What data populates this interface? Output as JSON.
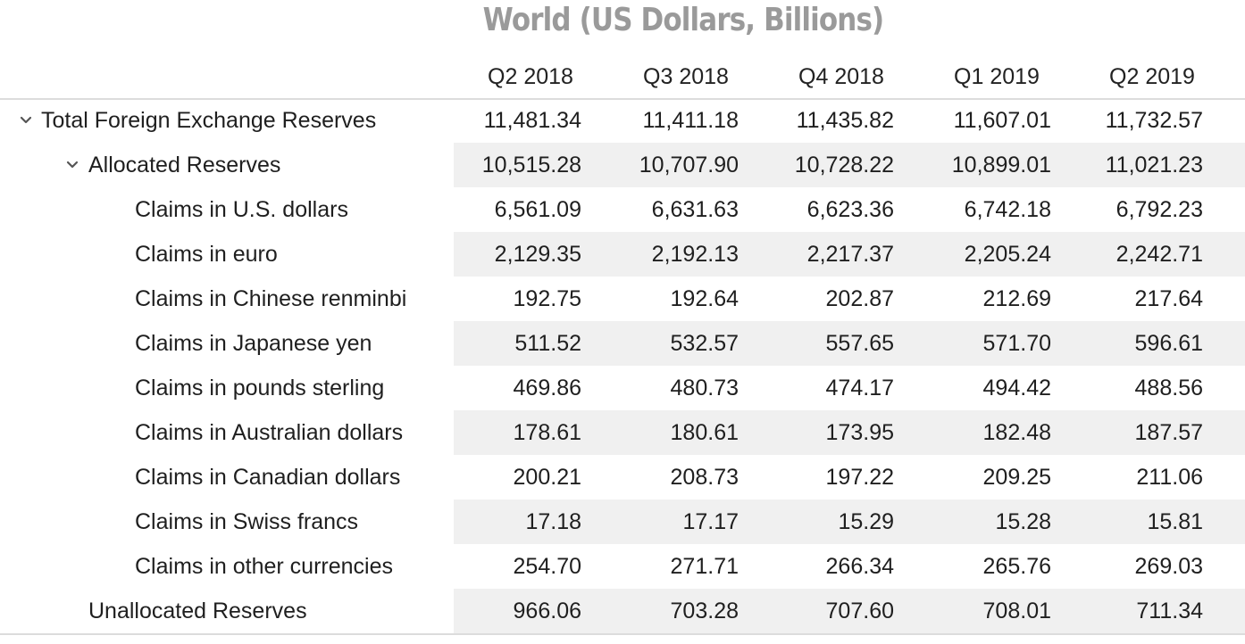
{
  "title": "World (US Dollars, Billions)",
  "columns": [
    "Q2 2018",
    "Q3 2018",
    "Q4 2018",
    "Q1 2019",
    "Q2 2019"
  ],
  "rows": [
    {
      "label": "Total Foreign Exchange Reserves",
      "level": 0,
      "expandable": true,
      "values": [
        "11,481.34",
        "11,411.18",
        "11,435.82",
        "11,607.01",
        "11,732.57"
      ]
    },
    {
      "label": "Allocated Reserves",
      "level": 1,
      "expandable": true,
      "values": [
        "10,515.28",
        "10,707.90",
        "10,728.22",
        "10,899.01",
        "11,021.23"
      ]
    },
    {
      "label": "Claims in U.S. dollars",
      "level": 2,
      "expandable": false,
      "values": [
        "6,561.09",
        "6,631.63",
        "6,623.36",
        "6,742.18",
        "6,792.23"
      ]
    },
    {
      "label": "Claims in euro",
      "level": 2,
      "expandable": false,
      "values": [
        "2,129.35",
        "2,192.13",
        "2,217.37",
        "2,205.24",
        "2,242.71"
      ]
    },
    {
      "label": "Claims in Chinese renminbi",
      "level": 2,
      "expandable": false,
      "values": [
        "192.75",
        "192.64",
        "202.87",
        "212.69",
        "217.64"
      ]
    },
    {
      "label": "Claims in Japanese yen",
      "level": 2,
      "expandable": false,
      "values": [
        "511.52",
        "532.57",
        "557.65",
        "571.70",
        "596.61"
      ]
    },
    {
      "label": "Claims in pounds sterling",
      "level": 2,
      "expandable": false,
      "values": [
        "469.86",
        "480.73",
        "474.17",
        "494.42",
        "488.56"
      ]
    },
    {
      "label": "Claims in Australian dollars",
      "level": 2,
      "expandable": false,
      "values": [
        "178.61",
        "180.61",
        "173.95",
        "182.48",
        "187.57"
      ]
    },
    {
      "label": "Claims in Canadian dollars",
      "level": 2,
      "expandable": false,
      "values": [
        "200.21",
        "208.73",
        "197.22",
        "209.25",
        "211.06"
      ]
    },
    {
      "label": "Claims in Swiss francs",
      "level": 2,
      "expandable": false,
      "values": [
        "17.18",
        "17.17",
        "15.29",
        "15.28",
        "15.81"
      ]
    },
    {
      "label": "Claims in other currencies",
      "level": 2,
      "expandable": false,
      "values": [
        "254.70",
        "271.71",
        "266.34",
        "265.76",
        "269.03"
      ]
    },
    {
      "label": "Unallocated Reserves",
      "level": 1,
      "expandable": false,
      "values": [
        "966.06",
        "703.28",
        "707.60",
        "708.01",
        "711.34"
      ]
    }
  ],
  "colors": {
    "title": "#9a9a9a",
    "stripe": "#f0f0f0",
    "rule": "#dcdcdc",
    "text": "#1f1f1f"
  },
  "icons": {
    "expand": "chevron-down-icon"
  }
}
